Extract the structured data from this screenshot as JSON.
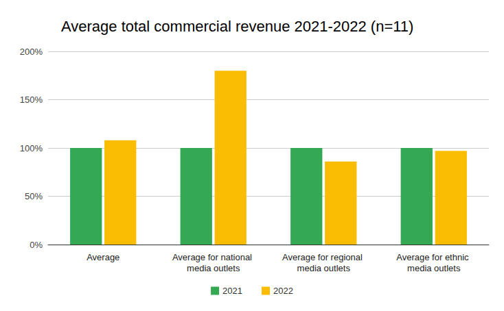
{
  "chart_data": {
    "type": "bar",
    "title": "Average total commercial revenue 2021-2022 (n=11)",
    "categories": [
      "Average",
      "Average for national media outlets",
      "Average for regional media outlets",
      "Average for ethnic media outlets"
    ],
    "series": [
      {
        "name": "2021",
        "color": "#34a853",
        "values": [
          100,
          100,
          100,
          100
        ]
      },
      {
        "name": "2022",
        "color": "#fbbc04",
        "values": [
          108,
          180,
          86,
          97
        ]
      }
    ],
    "ylim": [
      0,
      200
    ],
    "yticks": [
      {
        "value": 0,
        "label": "0%"
      },
      {
        "value": 50,
        "label": "50%"
      },
      {
        "value": 100,
        "label": "100%"
      },
      {
        "value": 150,
        "label": "150%"
      },
      {
        "value": 200,
        "label": "200%"
      }
    ],
    "grid": true,
    "legend": "bottom"
  }
}
